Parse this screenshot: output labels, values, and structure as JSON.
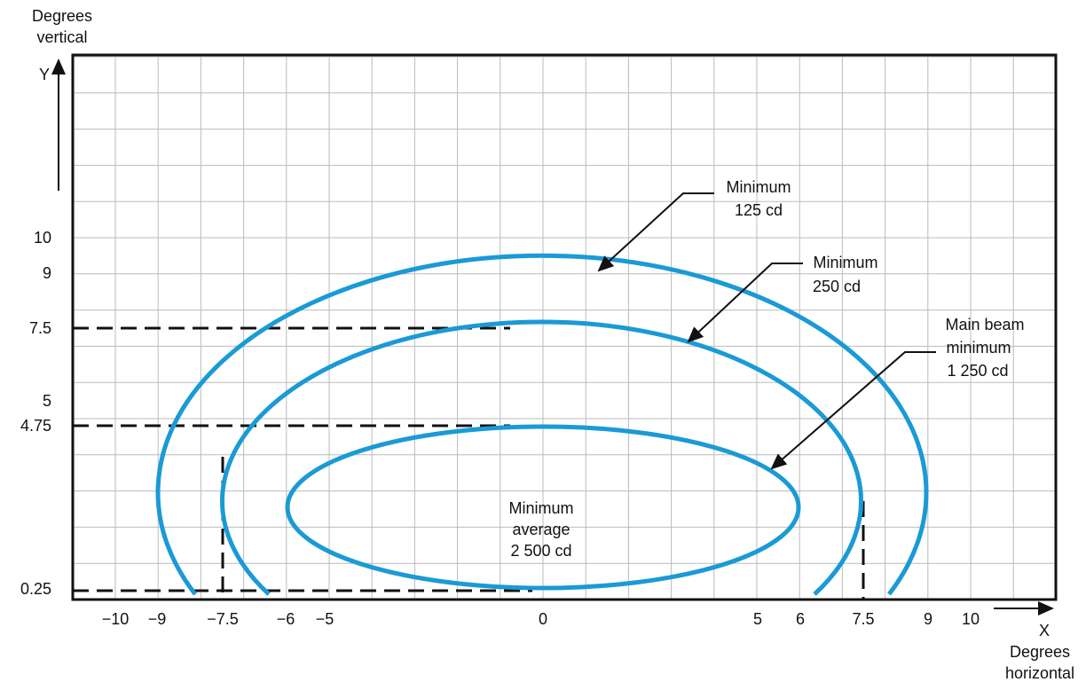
{
  "axes": {
    "y_label": [
      "Degrees",
      "vertical"
    ],
    "y_symbol": "Y",
    "x_symbol": "X",
    "x_label": [
      "Degrees",
      "horizontal"
    ],
    "x_ticks": [
      "−10",
      "−9",
      "−7.5",
      "−6",
      "−5",
      "0",
      "5",
      "6",
      "7.5",
      "9",
      "10"
    ],
    "y_ticks": [
      "10",
      "9",
      "7.5",
      "5",
      "4.75",
      "0.25"
    ]
  },
  "annotations": {
    "outer": [
      "Minimum",
      "125 cd"
    ],
    "middle": [
      "Minimum",
      "250 cd"
    ],
    "inner": [
      "Main beam",
      "minimum",
      "1 250 cd"
    ],
    "center": [
      "Minimum",
      "average",
      "2 500 cd"
    ]
  }
}
